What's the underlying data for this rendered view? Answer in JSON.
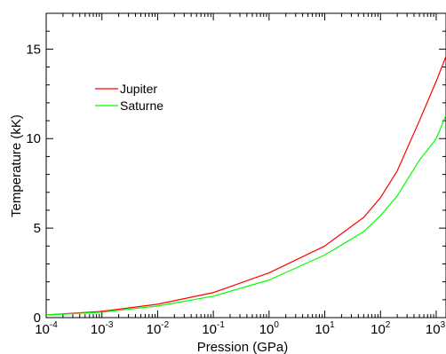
{
  "chart_data": {
    "type": "line",
    "title": "",
    "xlabel": "Pression (GPa)",
    "ylabel": "Temperature (kK)",
    "xscale": "log",
    "xlim": [
      0.0001,
      1500
    ],
    "ylim": [
      0,
      17
    ],
    "x_ticks": [
      {
        "value": 0.0001,
        "base": "10",
        "exp": "-4"
      },
      {
        "value": 0.001,
        "base": "10",
        "exp": "-3"
      },
      {
        "value": 0.01,
        "base": "10",
        "exp": "-2"
      },
      {
        "value": 0.1,
        "base": "10",
        "exp": "-1"
      },
      {
        "value": 1,
        "base": "10",
        "exp": "0"
      },
      {
        "value": 10,
        "base": "10",
        "exp": "1"
      },
      {
        "value": 100,
        "base": "10",
        "exp": "2"
      },
      {
        "value": 1000,
        "base": "10",
        "exp": "3"
      }
    ],
    "y_ticks": [
      {
        "value": 0,
        "label": "0"
      },
      {
        "value": 5,
        "label": "5"
      },
      {
        "value": 10,
        "label": "10"
      },
      {
        "value": 15,
        "label": "15"
      }
    ],
    "grid": false,
    "legend_position": "upper-left",
    "series": [
      {
        "name": "Jupiter",
        "color": "#ff0000",
        "x": [
          0.0001,
          0.001,
          0.01,
          0.1,
          1,
          10,
          50,
          100,
          200,
          500,
          1000,
          1500
        ],
        "y": [
          0.15,
          0.35,
          0.75,
          1.4,
          2.5,
          4.0,
          5.6,
          6.7,
          8.2,
          11.0,
          13.2,
          14.6
        ]
      },
      {
        "name": "Saturne",
        "color": "#00ff00",
        "x": [
          0.0001,
          0.001,
          0.01,
          0.1,
          1,
          10,
          50,
          100,
          200,
          500,
          900,
          1000,
          1500
        ],
        "y": [
          0.15,
          0.3,
          0.65,
          1.2,
          2.1,
          3.5,
          4.8,
          5.7,
          6.8,
          8.8,
          9.8,
          10.0,
          11.3
        ]
      }
    ]
  }
}
